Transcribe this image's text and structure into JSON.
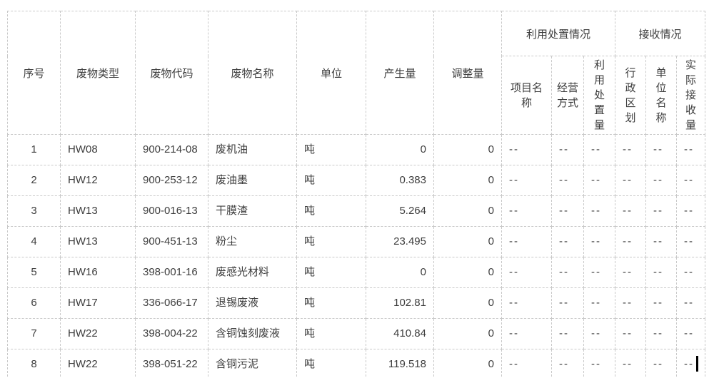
{
  "table": {
    "border_color": "#c9c9c9",
    "text_color": "#3d3d3d",
    "groups": [
      {
        "key": "utilization-disposal",
        "label": "利用处置情况",
        "span": 3
      },
      {
        "key": "reception",
        "label": "接收情况",
        "span": 3
      }
    ],
    "columns": [
      {
        "key": "serial-number",
        "label": "序号",
        "width": 74,
        "align": "center"
      },
      {
        "key": "waste-type",
        "label": "废物类型",
        "width": 105,
        "align": "left"
      },
      {
        "key": "waste-code",
        "label": "废物代码",
        "width": 102,
        "align": "left"
      },
      {
        "key": "waste-name",
        "label": "废物名称",
        "width": 124,
        "align": "left"
      },
      {
        "key": "unit",
        "label": "单位",
        "width": 97,
        "align": "left"
      },
      {
        "key": "generated-amount",
        "label": "产生量",
        "width": 95,
        "align": "right"
      },
      {
        "key": "adjusted-amount",
        "label": "调整量",
        "width": 95,
        "align": "right"
      },
      {
        "key": "project-name",
        "label": "项目名\n称",
        "width": 70,
        "align": "left",
        "group": 0
      },
      {
        "key": "operation-mode",
        "label": "经营\n方式",
        "width": 45,
        "align": "left",
        "group": 0
      },
      {
        "key": "disposal-amount",
        "label": "利\n用\n处\n置\n量",
        "width": 44,
        "align": "left",
        "group": 0
      },
      {
        "key": "admin-division",
        "label": "行\n政\n区\n划",
        "width": 43,
        "align": "left",
        "group": 1
      },
      {
        "key": "unit-name",
        "label": "单\n位\n名\n称",
        "width": 43,
        "align": "left",
        "group": 1
      },
      {
        "key": "actual-received",
        "label": "实\n际\n接\n收\n量",
        "width": 40,
        "align": "left",
        "group": 1
      }
    ],
    "rows": [
      [
        "1",
        "HW08",
        "900-214-08",
        "废机油",
        "吨",
        "0",
        "0",
        "--",
        "--",
        "--",
        "--",
        "--",
        "--"
      ],
      [
        "2",
        "HW12",
        "900-253-12",
        "废油墨",
        "吨",
        "0.383",
        "0",
        "--",
        "--",
        "--",
        "--",
        "--",
        "--"
      ],
      [
        "3",
        "HW13",
        "900-016-13",
        "干膜渣",
        "吨",
        "5.264",
        "0",
        "--",
        "--",
        "--",
        "--",
        "--",
        "--"
      ],
      [
        "4",
        "HW13",
        "900-451-13",
        "粉尘",
        "吨",
        "23.495",
        "0",
        "--",
        "--",
        "--",
        "--",
        "--",
        "--"
      ],
      [
        "5",
        "HW16",
        "398-001-16",
        "废感光材料",
        "吨",
        "0",
        "0",
        "--",
        "--",
        "--",
        "--",
        "--",
        "--"
      ],
      [
        "6",
        "HW17",
        "336-066-17",
        "退锡废液",
        "吨",
        "102.81",
        "0",
        "--",
        "--",
        "--",
        "--",
        "--",
        "--"
      ],
      [
        "7",
        "HW22",
        "398-004-22",
        "含铜蚀刻废液",
        "吨",
        "410.84",
        "0",
        "--",
        "--",
        "--",
        "--",
        "--",
        "--"
      ],
      [
        "8",
        "HW22",
        "398-051-22",
        "含铜污泥",
        "吨",
        "119.518",
        "0",
        "--",
        "--",
        "--",
        "--",
        "--",
        "--"
      ]
    ],
    "placeholder": "--"
  },
  "caret": {
    "visible": true,
    "row": 7,
    "col": 12
  }
}
